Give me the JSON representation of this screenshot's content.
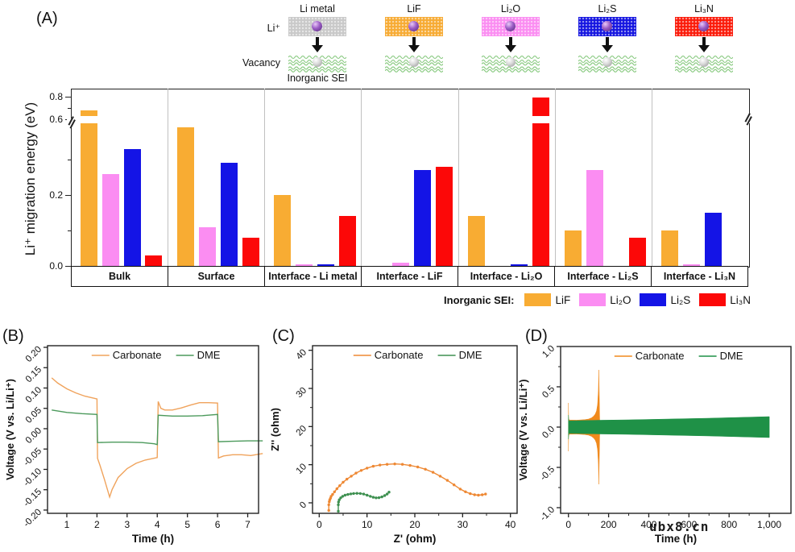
{
  "panels": {
    "a": "(A)",
    "b": "(B)",
    "c": "(C)",
    "d": "(D)"
  },
  "schematic": {
    "li_ion_label": "Li⁺",
    "vacancy_label": "Vacancy",
    "inorganic_sei_label": "Inorganic SEI",
    "sei_wave_color": "#85c87c",
    "columns": [
      {
        "name": "Li metal",
        "color": "#c9c9c9"
      },
      {
        "name": "LiF",
        "color": "#f7ab33"
      },
      {
        "name": "Li₂O",
        "color": "#fb8df2"
      },
      {
        "name": "Li₂S",
        "color": "#1515e0"
      },
      {
        "name": "Li₃N",
        "color": "#fb1a0a"
      }
    ]
  },
  "chart_data": [
    {
      "panel": "(A)",
      "type": "bar",
      "ylabel": "Li⁺ migration energy (eV)",
      "yticks": {
        "values": [
          0.0,
          0.2,
          0.6,
          0.8
        ],
        "labels": [
          "0.0",
          "0.2",
          "0.6",
          "0.8"
        ],
        "minor": [
          0.1,
          0.3,
          0.7
        ]
      },
      "axis_break": {
        "hidden_from": 0.42,
        "hidden_to": 0.58
      },
      "categories": [
        "Bulk",
        "Surface",
        "Interface - Li metal",
        "Interface - LiF",
        "Interface - Li₂O",
        "Interface - Li₂S",
        "Interface - Li₃N"
      ],
      "legend_title": "Inorganic SEI:",
      "series": [
        {
          "name": "LiF",
          "color": "#f8ac33",
          "values": [
            0.68,
            0.39,
            0.2,
            null,
            0.14,
            0.1,
            0.1
          ]
        },
        {
          "name": "Li₂O",
          "color": "#fb8df2",
          "values": [
            0.26,
            0.11,
            0.005,
            0.01,
            null,
            0.27,
            0.005
          ]
        },
        {
          "name": "Li₂S",
          "color": "#1414e6",
          "values": [
            0.33,
            0.29,
            0.005,
            0.27,
            0.005,
            null,
            0.15
          ]
        },
        {
          "name": "Li₃N",
          "color": "#fc0808",
          "values": [
            0.03,
            0.08,
            0.14,
            0.28,
            0.79,
            0.08,
            null
          ]
        }
      ]
    },
    {
      "panel": "(B)",
      "type": "line",
      "xlabel": "Time (h)",
      "ylabel": "Voltage (V vs. Li/Li⁺)",
      "xlim": [
        0.36,
        7.36
      ],
      "ylim": [
        -0.208,
        0.204
      ],
      "xticks": {
        "values": [
          1,
          2,
          3,
          4,
          5,
          6,
          7
        ],
        "labels": [
          "1",
          "2",
          "3",
          "4",
          "5",
          "6",
          "7"
        ],
        "minor": []
      },
      "yticks": {
        "values": [
          0.2,
          0.15,
          0.1,
          0.05,
          0.0,
          -0.05,
          -0.1,
          -0.15,
          -0.2
        ],
        "labels": [
          "0.20",
          "0.15",
          "0.10",
          "0.05",
          "0.00",
          "-0.05",
          "-0.10",
          "-0.15",
          "-0.20"
        ],
        "minor": []
      },
      "series": [
        {
          "name": "Carbonate",
          "color": "#f0a35c",
          "points": [
            [
              0.5,
              0.125
            ],
            [
              0.7,
              0.112
            ],
            [
              1.0,
              0.098
            ],
            [
              1.3,
              0.088
            ],
            [
              1.6,
              0.08
            ],
            [
              2.0,
              0.073
            ],
            [
              2.02,
              -0.073
            ],
            [
              2.1,
              -0.09
            ],
            [
              2.25,
              -0.125
            ],
            [
              2.42,
              -0.168
            ],
            [
              2.5,
              -0.15
            ],
            [
              2.7,
              -0.12
            ],
            [
              3.0,
              -0.098
            ],
            [
              3.3,
              -0.085
            ],
            [
              3.6,
              -0.077
            ],
            [
              4.0,
              -0.071
            ],
            [
              4.03,
              0.067
            ],
            [
              4.12,
              0.05
            ],
            [
              4.25,
              0.046
            ],
            [
              4.5,
              0.046
            ],
            [
              4.8,
              0.051
            ],
            [
              5.1,
              0.058
            ],
            [
              5.4,
              0.064
            ],
            [
              5.7,
              0.064
            ],
            [
              6.0,
              0.063
            ],
            [
              6.03,
              -0.072
            ],
            [
              6.2,
              -0.067
            ],
            [
              6.5,
              -0.064
            ],
            [
              6.8,
              -0.064
            ],
            [
              7.1,
              -0.066
            ],
            [
              7.5,
              -0.061
            ]
          ]
        },
        {
          "name": "DME",
          "color": "#4c9a5c",
          "points": [
            [
              0.5,
              0.046
            ],
            [
              1.0,
              0.04
            ],
            [
              1.5,
              0.037
            ],
            [
              2.0,
              0.035
            ],
            [
              2.02,
              -0.034
            ],
            [
              2.5,
              -0.033
            ],
            [
              3.0,
              -0.033
            ],
            [
              3.5,
              -0.034
            ],
            [
              3.9,
              -0.037
            ],
            [
              4.0,
              -0.039
            ],
            [
              4.03,
              0.033
            ],
            [
              4.5,
              0.031
            ],
            [
              5.0,
              0.031
            ],
            [
              5.5,
              0.032
            ],
            [
              6.0,
              0.035
            ],
            [
              6.03,
              -0.032
            ],
            [
              6.5,
              -0.031
            ],
            [
              7.0,
              -0.03
            ],
            [
              7.5,
              -0.03
            ]
          ]
        }
      ]
    },
    {
      "panel": "(C)",
      "type": "scatter-line",
      "xlabel": "Z' (ohm)",
      "ylabel": "Z'' (ohm)",
      "xlim": [
        -1.4,
        41.4
      ],
      "ylim": [
        -2.75,
        41.2
      ],
      "xticks": {
        "values": [
          0,
          10,
          20,
          30,
          40
        ],
        "labels": [
          "0",
          "10",
          "20",
          "30",
          "40"
        ],
        "minor": [
          5,
          15,
          25,
          35
        ]
      },
      "yticks": {
        "values": [
          0,
          10,
          20,
          30,
          40
        ],
        "labels": [
          "0",
          "10",
          "20",
          "30",
          "40"
        ],
        "minor": [
          5,
          15,
          25,
          35
        ]
      },
      "series": [
        {
          "name": "Carbonate",
          "color": "#ee8833",
          "markers": true,
          "points": [
            [
              2.0,
              -2.0
            ],
            [
              2.0,
              -0.5
            ],
            [
              2.1,
              0.3
            ],
            [
              2.2,
              0.8
            ],
            [
              2.35,
              1.2
            ],
            [
              2.5,
              1.7
            ],
            [
              2.8,
              2.2
            ],
            [
              3.2,
              2.9
            ],
            [
              3.7,
              3.7
            ],
            [
              4.3,
              4.5
            ],
            [
              5.0,
              5.4
            ],
            [
              5.8,
              6.2
            ],
            [
              6.7,
              7.0
            ],
            [
              7.7,
              7.8
            ],
            [
              8.8,
              8.5
            ],
            [
              10.0,
              9.1
            ],
            [
              11.3,
              9.6
            ],
            [
              12.7,
              9.9
            ],
            [
              14.2,
              10.1
            ],
            [
              15.8,
              10.2
            ],
            [
              17.4,
              10.1
            ],
            [
              19.0,
              9.8
            ],
            [
              20.6,
              9.4
            ],
            [
              22.2,
              8.8
            ],
            [
              23.8,
              8.0
            ],
            [
              25.3,
              7.0
            ],
            [
              26.8,
              5.9
            ],
            [
              28.2,
              4.7
            ],
            [
              29.5,
              3.6
            ],
            [
              30.6,
              2.9
            ],
            [
              31.6,
              2.4
            ],
            [
              32.5,
              2.1
            ],
            [
              33.3,
              2.0
            ],
            [
              34.1,
              2.1
            ],
            [
              34.8,
              2.3
            ]
          ]
        },
        {
          "name": "DME",
          "color": "#3e9050",
          "markers": true,
          "points": [
            [
              4.0,
              -2.2
            ],
            [
              4.0,
              -0.5
            ],
            [
              4.05,
              0.2
            ],
            [
              4.2,
              0.8
            ],
            [
              4.5,
              1.3
            ],
            [
              4.9,
              1.7
            ],
            [
              5.4,
              2.0
            ],
            [
              6.0,
              2.2
            ],
            [
              6.6,
              2.35
            ],
            [
              7.2,
              2.45
            ],
            [
              7.9,
              2.5
            ],
            [
              8.6,
              2.45
            ],
            [
              9.3,
              2.3
            ],
            [
              10.0,
              2.0
            ],
            [
              10.7,
              1.7
            ],
            [
              11.3,
              1.45
            ],
            [
              11.9,
              1.3
            ],
            [
              12.5,
              1.35
            ],
            [
              13.1,
              1.55
            ],
            [
              13.7,
              1.9
            ],
            [
              14.2,
              2.3
            ],
            [
              14.6,
              2.8
            ]
          ]
        }
      ]
    },
    {
      "panel": "(D)",
      "type": "area",
      "xlabel": "Time (h)",
      "ylabel": "Voltage (V vs. Li/Li⁺)",
      "xlim": [
        -39,
        1108
      ],
      "ylim": [
        -1.07,
        1.0
      ],
      "xticks": {
        "values": [
          0,
          200,
          400,
          600,
          800,
          1000
        ],
        "labels": [
          "0",
          "200",
          "400",
          "600",
          "800",
          "1,000"
        ],
        "minor": [
          100,
          300,
          500,
          700,
          900
        ]
      },
      "yticks": {
        "values": [
          1.0,
          0.5,
          0.0,
          -0.5,
          -1.0
        ],
        "labels": [
          "1.0",
          "0.5",
          "0.0",
          "-0.5",
          "-1.0"
        ],
        "minor": [
          0.75,
          0.25,
          -0.25,
          -0.75
        ]
      },
      "series": [
        {
          "name": "Carbonate",
          "color": "#f08a1d",
          "envelope": [
            [
              0,
              0.3
            ],
            [
              1,
              0.1
            ],
            [
              5,
              0.088
            ],
            [
              40,
              0.086
            ],
            [
              80,
              0.092
            ],
            [
              100,
              0.1
            ],
            [
              115,
              0.115
            ],
            [
              125,
              0.135
            ],
            [
              133,
              0.16
            ],
            [
              140,
              0.2
            ],
            [
              145,
              0.28
            ],
            [
              149,
              0.45
            ],
            [
              151,
              0.71
            ],
            [
              153,
              0.45
            ],
            [
              155,
              0.15
            ],
            [
              156,
              0.05
            ]
          ]
        },
        {
          "name": "DME",
          "color": "#1f9147",
          "envelope": [
            [
              0,
              0.15
            ],
            [
              2,
              0.078
            ],
            [
              50,
              0.08
            ],
            [
              150,
              0.085
            ],
            [
              300,
              0.09
            ],
            [
              500,
              0.1
            ],
            [
              700,
              0.11
            ],
            [
              850,
              0.12
            ],
            [
              1000,
              0.13
            ]
          ]
        }
      ]
    }
  ],
  "watermark": {
    "text": "ubx8.cn"
  }
}
